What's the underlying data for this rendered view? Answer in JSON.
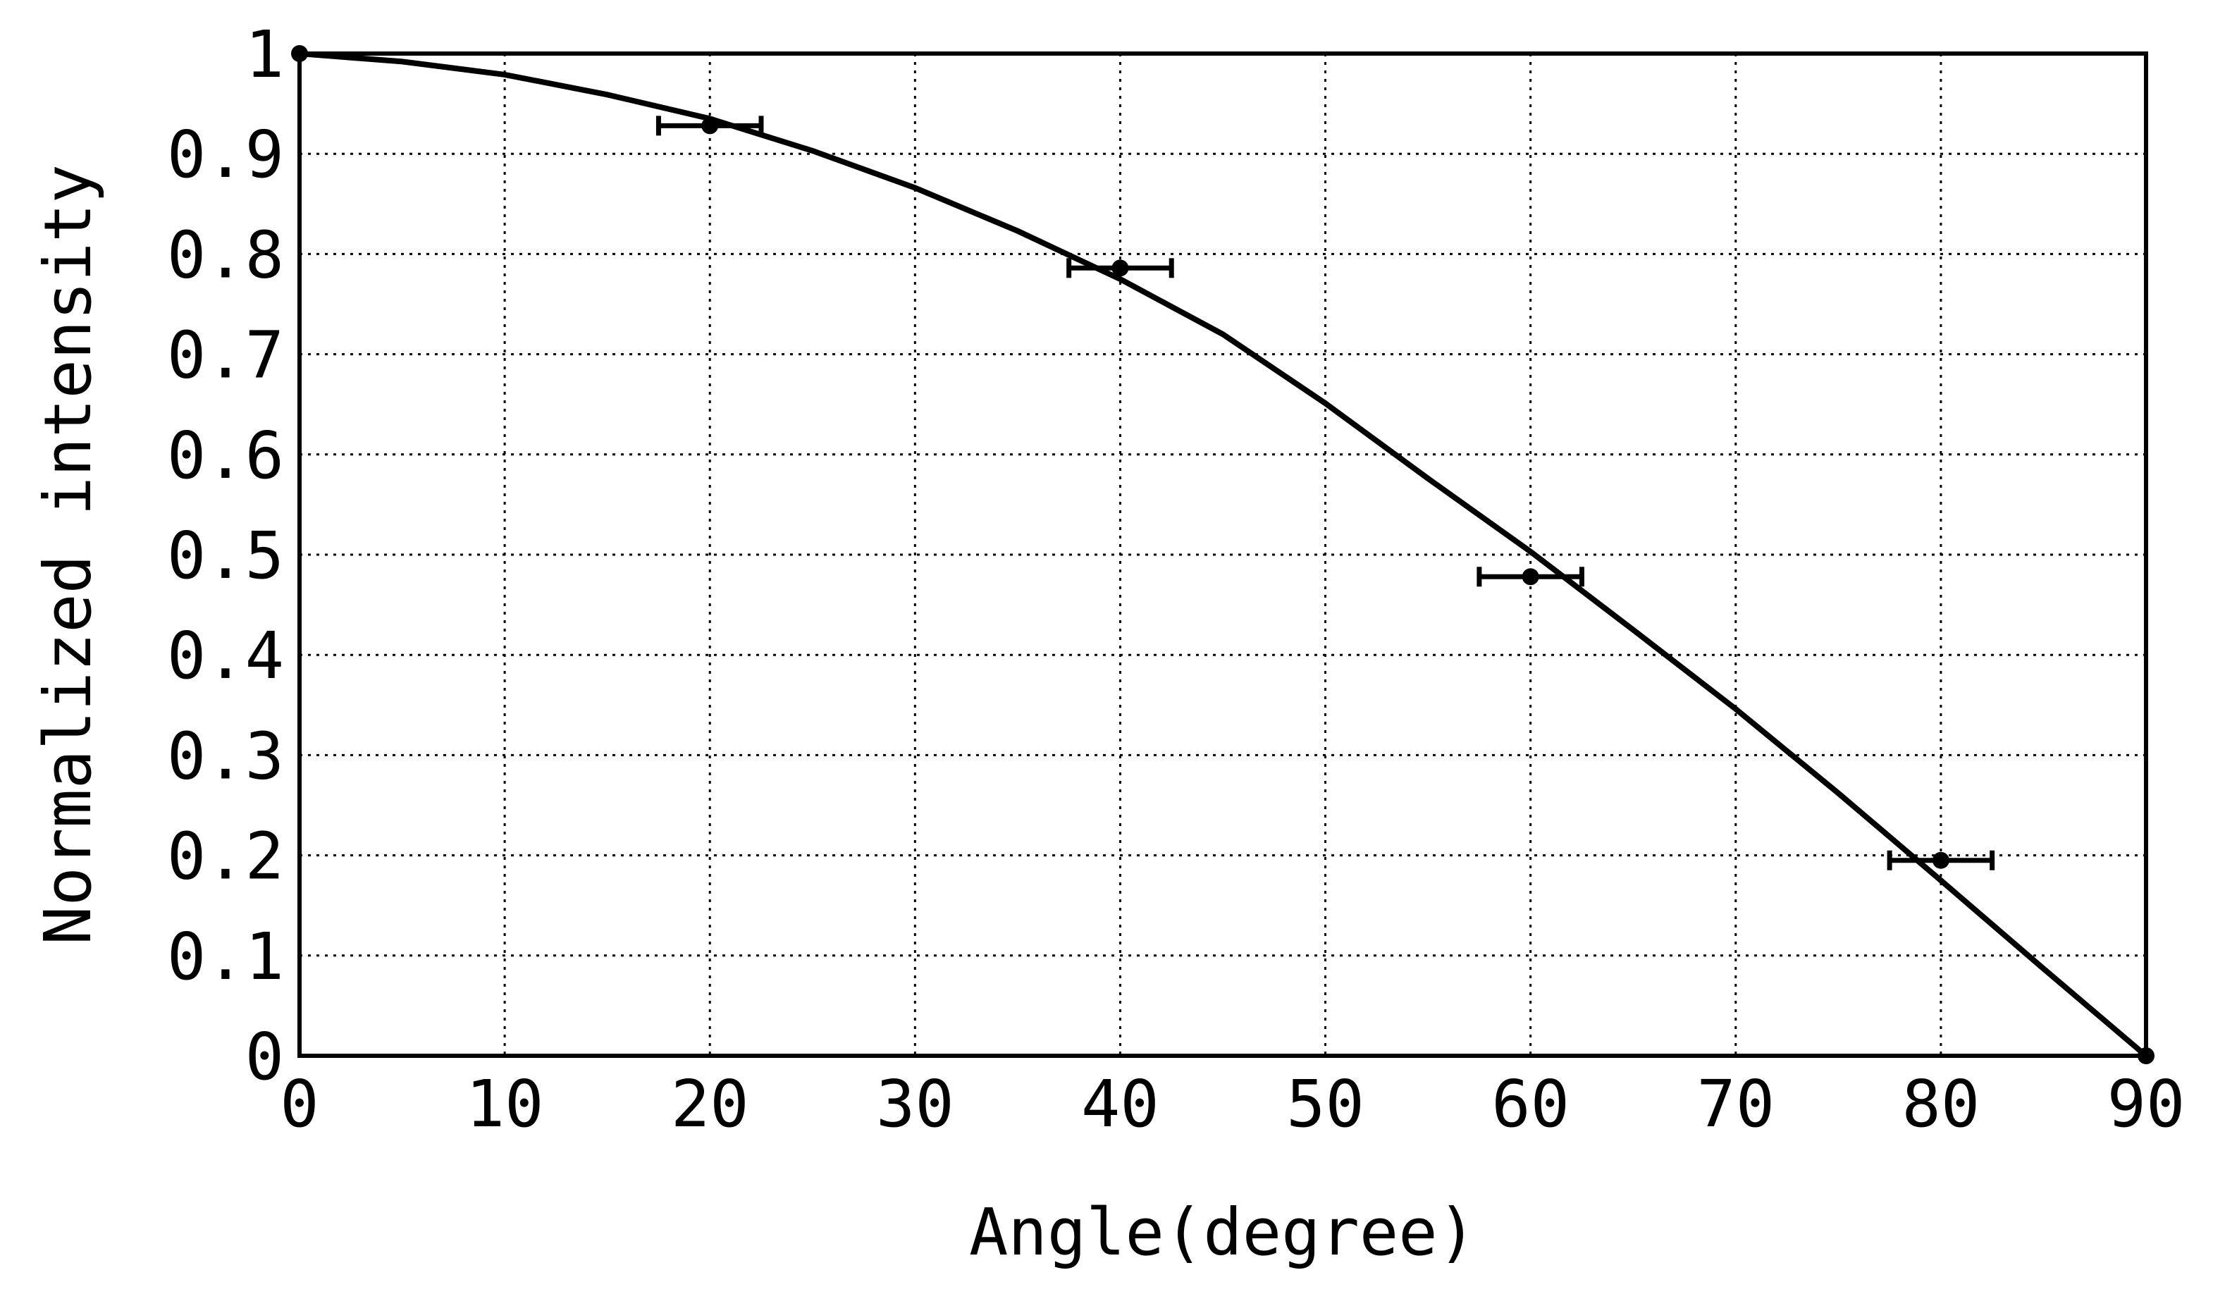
{
  "chart_data": {
    "type": "scatter",
    "xlabel": "Angle(degree)",
    "ylabel": "Normalized intensity",
    "xlim": [
      0,
      90
    ],
    "ylim": [
      0,
      1
    ],
    "x_ticks": [
      "0",
      "10",
      "20",
      "30",
      "40",
      "50",
      "60",
      "70",
      "80",
      "90"
    ],
    "y_ticks": [
      "0",
      "0.1",
      "0.2",
      "0.3",
      "0.4",
      "0.5",
      "0.6",
      "0.7",
      "0.8",
      "0.9",
      "1"
    ],
    "grid": true,
    "series": [
      {
        "type": "scatter",
        "points": [
          {
            "x": 0,
            "y": 1.0
          },
          {
            "x": 20,
            "y": 0.928,
            "xerr": 2.5
          },
          {
            "x": 40,
            "y": 0.786,
            "xerr": 2.5
          },
          {
            "x": 60,
            "y": 0.478,
            "xerr": 2.5
          },
          {
            "x": 80,
            "y": 0.195,
            "xerr": 2.5
          },
          {
            "x": 90,
            "y": 0.0
          }
        ]
      },
      {
        "type": "line",
        "x": [
          0,
          5,
          10,
          15,
          20,
          25,
          30,
          35,
          40,
          45,
          50,
          55,
          60,
          65,
          70,
          75,
          80,
          85,
          90
        ],
        "y": [
          1.0,
          0.992,
          0.979,
          0.959,
          0.935,
          0.903,
          0.866,
          0.823,
          0.775,
          0.72,
          0.651,
          0.576,
          0.503,
          0.425,
          0.346,
          0.262,
          0.175,
          0.087,
          0.0
        ]
      }
    ],
    "colors": {
      "axis": "#000000",
      "grid": "#000000",
      "background": "#ffffff"
    }
  }
}
